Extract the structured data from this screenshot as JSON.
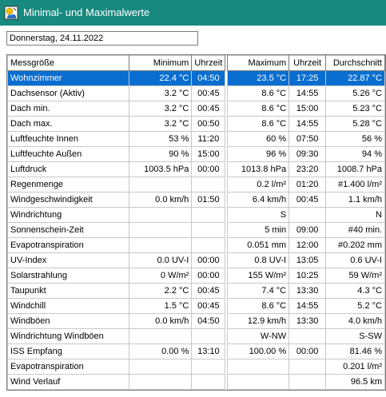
{
  "window": {
    "title": "Minimal- und Maximalwerte",
    "icon": "weather-app-icon"
  },
  "date_field": {
    "value": "Donnerstag, 24.11.2022"
  },
  "table": {
    "headers": [
      "Messgröße",
      "Minimum",
      "Uhrzeit",
      "Maximum",
      "Uhrzeit",
      "Durchschnitt"
    ],
    "selected_row": 0,
    "rows": [
      [
        "Wohnzimmer",
        "22.4 °C",
        "04:50",
        "23.5 °C",
        "17:25",
        "22.87 °C"
      ],
      [
        "Dachsensor (Aktiv)",
        "3.2 °C",
        "00:45",
        "8.6 °C",
        "14:55",
        "5.26 °C"
      ],
      [
        "Dach min.",
        "3.2 °C",
        "00:45",
        "8.6 °C",
        "15:00",
        "5.23 °C"
      ],
      [
        "Dach max.",
        "3.2 °C",
        "00:50",
        "8.6 °C",
        "14:55",
        "5.28 °C"
      ],
      [
        "Luftfeuchte Innen",
        "53 %",
        "11:20",
        "60 %",
        "07:50",
        "56 %"
      ],
      [
        "Luftfeuchte Außen",
        "90 %",
        "15:00",
        "96 %",
        "09:30",
        "94 %"
      ],
      [
        "Luftdruck",
        "1003.5 hPa",
        "00:00",
        "1013.8 hPa",
        "23:20",
        "1008.7 hPa"
      ],
      [
        "Regenmenge",
        "",
        "",
        "0.2 l/m²",
        "01:20",
        "#1.400 l/m²"
      ],
      [
        "Windgeschwindigkeit",
        "0.0 km/h",
        "01:50",
        "6.4 km/h",
        "00:45",
        "1.1 km/h"
      ],
      [
        "Windrichtung",
        "",
        "",
        "S",
        "",
        "N"
      ],
      [
        "Sonnenschein-Zeit",
        "",
        "",
        "5 min",
        "09:00",
        "#40 min."
      ],
      [
        "Evapotranspiration",
        "",
        "",
        "0.051 mm",
        "12:00",
        "#0.202 mm"
      ],
      [
        "UV-Index",
        "0.0 UV-I",
        "00:00",
        "0.8 UV-I",
        "13:05",
        "0.6 UV-I"
      ],
      [
        "Solarstrahlung",
        "0 W/m²",
        "00:00",
        "155 W/m²",
        "10:25",
        "59 W/m²"
      ],
      [
        "Taupunkt",
        "2.2 °C",
        "00:45",
        "7.4 °C",
        "13:30",
        "4.3 °C"
      ],
      [
        "Windchill",
        "1.5 °C",
        "00:45",
        "8.6 °C",
        "14:55",
        "5.2 °C"
      ],
      [
        "Windböen",
        "0.0 km/h",
        "04:50",
        "12.9 km/h",
        "13:30",
        "4.0 km/h"
      ],
      [
        "Windrichtung Windböen",
        "",
        "",
        "W-NW",
        "",
        "S-SW"
      ],
      [
        "ISS Empfang",
        "0.00 %",
        "13:10",
        "100.00 %",
        "00:00",
        "81.46 %"
      ],
      [
        "Evapotranspiration",
        "",
        "",
        "",
        "",
        "0.201 l/m²"
      ],
      [
        "Wind Verlauf",
        "",
        "",
        "",
        "",
        "96.5 km"
      ]
    ]
  }
}
